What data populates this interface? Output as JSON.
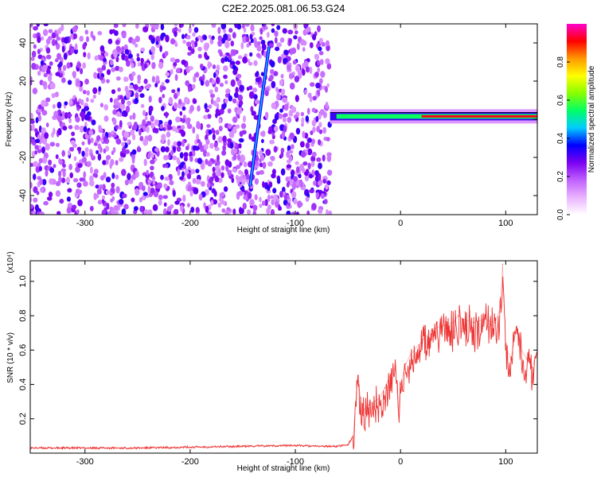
{
  "title": "C2E2.2025.081.06.53.G24",
  "chart_data": [
    {
      "type": "heatmap",
      "title": "C2E2.2025.081.06.53.G24",
      "xlabel": "Height of straight line (km)",
      "ylabel": "Frequency (Hz)",
      "xlim": [
        -352,
        130
      ],
      "ylim": [
        -50,
        50
      ],
      "x_ticks": [
        -300,
        -200,
        -100,
        0,
        100
      ],
      "x_tick_labels": [
        "-300",
        "-200",
        "-100",
        "0",
        "100"
      ],
      "y_ticks": [
        -40,
        -20,
        0,
        20,
        40
      ],
      "y_tick_labels": [
        "-40",
        "-20",
        "0",
        "20",
        "40"
      ],
      "noise_region_x": [
        -352,
        -67
      ],
      "signal_band": {
        "x_start": -67,
        "x_end": 130,
        "frequency_hz": 1.5
      },
      "diagonal_streak": [
        {
          "x": -143,
          "y": -35
        },
        {
          "x": -132,
          "y": 10
        },
        {
          "x": -125,
          "y": 38
        }
      ],
      "colorbar": {
        "label": "Normalized spectral amplitude",
        "range": [
          0,
          1
        ],
        "ticks": [
          0.0,
          0.2,
          0.4,
          0.6,
          0.8
        ],
        "tick_labels": [
          "0.0",
          "0.2",
          "0.4",
          "0.6",
          "0.8"
        ],
        "colors": [
          "#ffffff",
          "#e9b3ff",
          "#c060ff",
          "#7a00f0",
          "#0000ff",
          "#00ccff",
          "#00ff66",
          "#88ff00",
          "#ffff00",
          "#ff9900",
          "#ff0000",
          "#ff00cc"
        ]
      },
      "grid": false
    },
    {
      "type": "line",
      "xlabel": "Height of straight line (km)",
      "ylabel": "SNR (10 * v/v)",
      "y_scale_label": "(x10⁴)",
      "xlim": [
        -352,
        130
      ],
      "ylim": [
        0,
        1.12
      ],
      "x_ticks": [
        -300,
        -200,
        -100,
        0,
        100
      ],
      "x_tick_labels": [
        "-300",
        "-200",
        "-100",
        "0",
        "100"
      ],
      "y_ticks": [
        0.2,
        0.4,
        0.6,
        0.8,
        1.0
      ],
      "y_tick_labels": [
        "0.2",
        "0.4",
        "0.6",
        "0.8",
        "1.0"
      ],
      "line_color": "#ee3333",
      "series": [
        {
          "x": [
            -352,
            -300,
            -250,
            -200,
            -150,
            -100,
            -80,
            -60,
            -50,
            -45,
            -42,
            -40,
            -38,
            -35,
            -30,
            -25,
            -20,
            -15,
            -10,
            -5,
            -2,
            0,
            5,
            10,
            20,
            30,
            40,
            50,
            55,
            60,
            70,
            80,
            90,
            95,
            97,
            100,
            105,
            110,
            115,
            120,
            125,
            130
          ],
          "y": [
            0.03,
            0.03,
            0.03,
            0.035,
            0.04,
            0.045,
            0.04,
            0.04,
            0.05,
            0.1,
            0.35,
            0.45,
            0.3,
            0.25,
            0.28,
            0.3,
            0.32,
            0.38,
            0.45,
            0.5,
            0.25,
            0.4,
            0.52,
            0.58,
            0.65,
            0.72,
            0.74,
            0.76,
            0.8,
            0.78,
            0.76,
            0.78,
            0.76,
            0.85,
            1.1,
            0.62,
            0.55,
            0.72,
            0.6,
            0.55,
            0.5,
            0.6
          ]
        }
      ],
      "grid": false
    }
  ]
}
